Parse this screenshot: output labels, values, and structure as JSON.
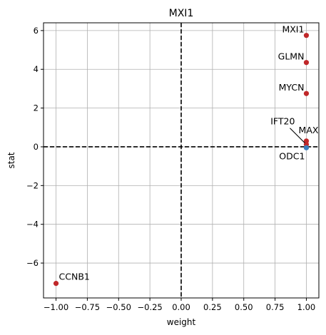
{
  "chart_data": {
    "type": "scatter",
    "title": "MXI1",
    "xlabel": "weight",
    "ylabel": "stat",
    "xlim": [
      -1.1,
      1.1
    ],
    "ylim": [
      -7.8,
      6.4
    ],
    "xticks": [
      -1.0,
      -0.75,
      -0.5,
      -0.25,
      0.0,
      0.25,
      0.5,
      0.75,
      1.0
    ],
    "xtick_labels": [
      "−1.00",
      "−0.75",
      "−0.50",
      "−0.25",
      "0.00",
      "0.25",
      "0.50",
      "0.75",
      "1.00"
    ],
    "yticks": [
      -6,
      -4,
      -2,
      0,
      2,
      4,
      6
    ],
    "ytick_labels": [
      "−6",
      "−4",
      "−2",
      "0",
      "2",
      "4",
      "6"
    ],
    "grid": true,
    "reference_lines": {
      "x": 0,
      "y": 0,
      "style": "dashed",
      "color": "#000000"
    },
    "points": [
      {
        "label": "MXI1",
        "x": 1.0,
        "y": 5.75,
        "color": "#c0282a",
        "label_anchor": "left"
      },
      {
        "label": "GLMN",
        "x": 1.0,
        "y": 4.35,
        "color": "#c0282a",
        "label_anchor": "left"
      },
      {
        "label": "MYCN",
        "x": 1.0,
        "y": 2.75,
        "color": "#c0282a",
        "label_anchor": "left"
      },
      {
        "label": "MAX",
        "x": 1.0,
        "y": 0.3,
        "color": "#c0282a",
        "label_anchor": "above"
      },
      {
        "label": "IFT20",
        "x": 1.0,
        "y": 0.12,
        "color": "#c0282a",
        "label_anchor": "callout"
      },
      {
        "label": "ODC1",
        "x": 1.0,
        "y": -0.05,
        "color": "#3a7fbf",
        "label_anchor": "below-left"
      },
      {
        "label": "CCNB1",
        "x": -1.0,
        "y": -7.05,
        "color": "#c0282a",
        "label_anchor": "right"
      }
    ]
  }
}
